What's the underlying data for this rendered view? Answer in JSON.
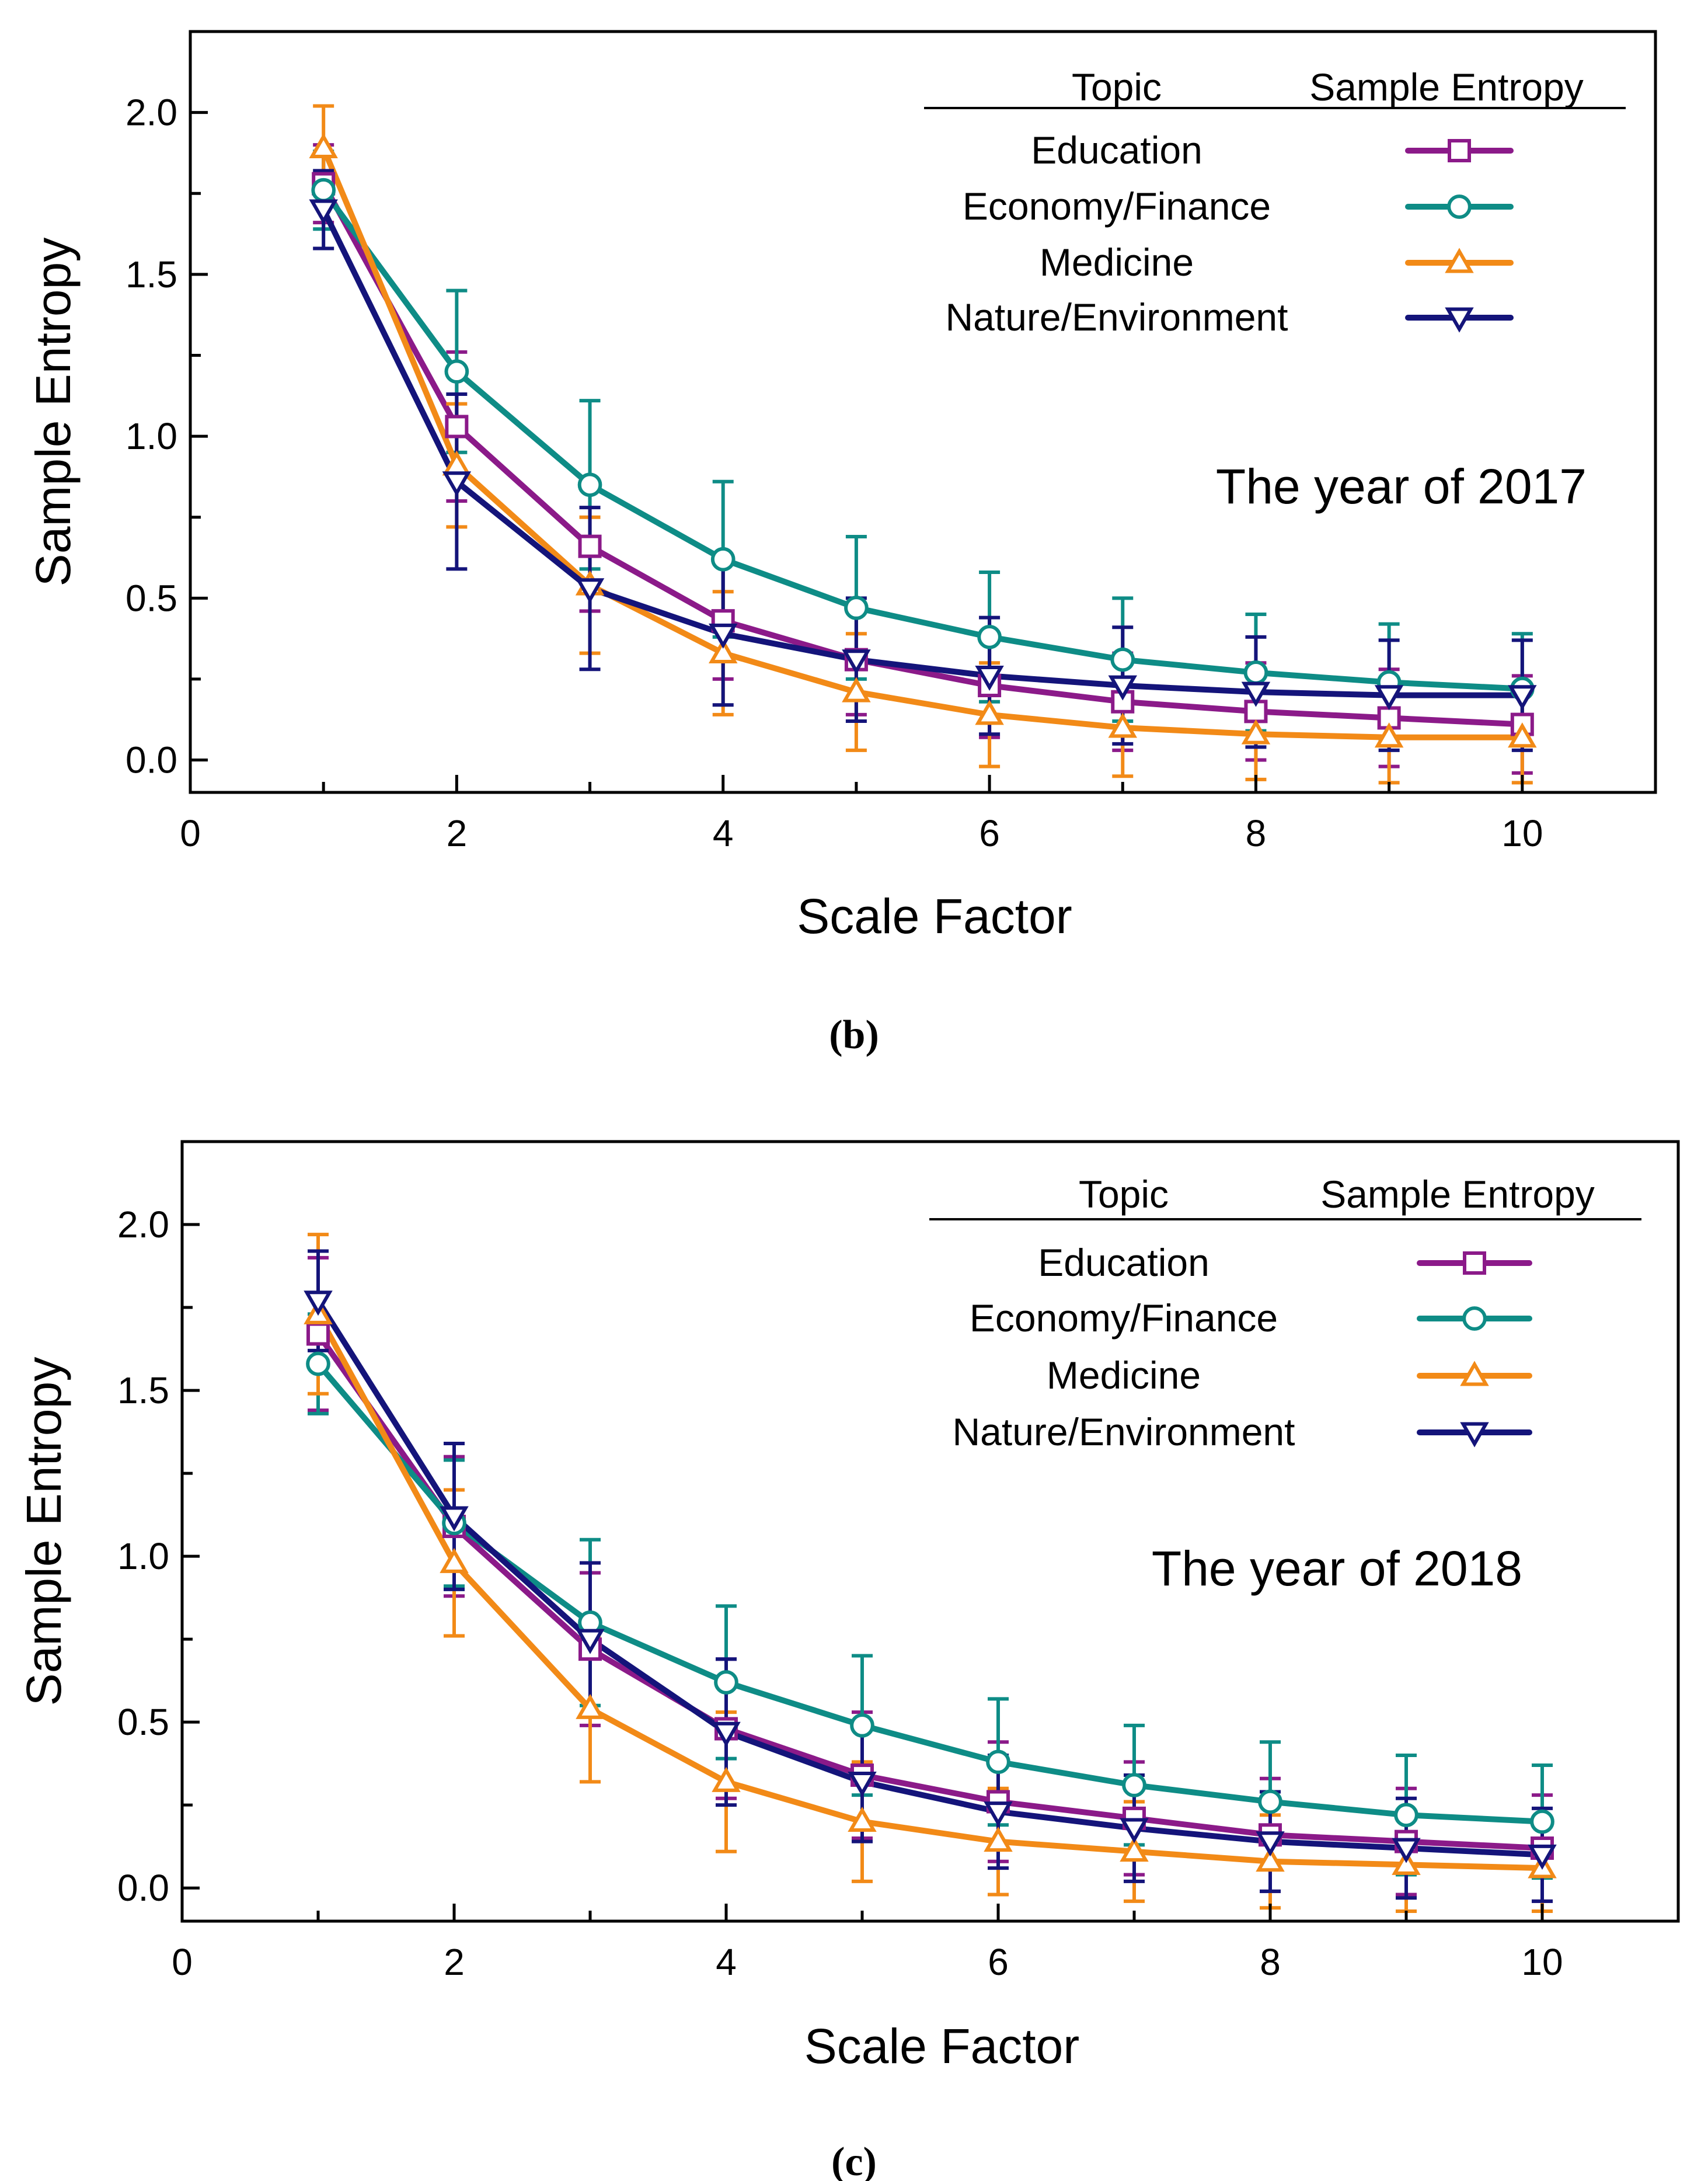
{
  "chart_data": [
    {
      "type": "line",
      "panel_label": "b",
      "caption": "(b)",
      "title": "",
      "annotation": "The year of 2017",
      "xlabel": "Scale Factor",
      "ylabel": "Sample Entropy",
      "xlim": [
        0,
        11
      ],
      "ylim": [
        -0.1,
        2.25
      ],
      "xticks": [
        "0",
        "2",
        "4",
        "6",
        "8",
        "10"
      ],
      "yticks": [
        "0.0",
        "0.5",
        "1.0",
        "1.5",
        "2.0"
      ],
      "grid": false,
      "legend": {
        "position": "top-right",
        "header_topic": "Topic",
        "header_symbol": "Sample Entropy"
      },
      "x": [
        1,
        2,
        3,
        4,
        5,
        6,
        7,
        8,
        9,
        10
      ],
      "series": [
        {
          "name": "Education",
          "color": "#8B1A89",
          "marker": "square",
          "values": [
            1.78,
            1.03,
            0.66,
            0.43,
            0.31,
            0.23,
            0.18,
            0.15,
            0.13,
            0.11
          ],
          "errors": [
            0.12,
            0.23,
            0.2,
            0.18,
            0.17,
            0.16,
            0.15,
            0.15,
            0.15,
            0.15
          ]
        },
        {
          "name": "Economy/Finance",
          "color": "#0E8C86",
          "marker": "circle",
          "values": [
            1.76,
            1.2,
            0.85,
            0.62,
            0.47,
            0.38,
            0.31,
            0.27,
            0.24,
            0.22
          ],
          "errors": [
            0.12,
            0.25,
            0.26,
            0.24,
            0.22,
            0.2,
            0.19,
            0.18,
            0.18,
            0.17
          ]
        },
        {
          "name": "Medicine",
          "color": "#F28A17",
          "marker": "triangle-up",
          "values": [
            1.89,
            0.91,
            0.54,
            0.33,
            0.21,
            0.14,
            0.1,
            0.08,
            0.07,
            0.07
          ],
          "errors": [
            0.13,
            0.19,
            0.21,
            0.19,
            0.18,
            0.16,
            0.15,
            0.14,
            0.14,
            0.14
          ]
        },
        {
          "name": "Nature/Environment",
          "color": "#14147A",
          "marker": "triangle-down",
          "values": [
            1.7,
            0.86,
            0.53,
            0.39,
            0.31,
            0.26,
            0.23,
            0.21,
            0.2,
            0.2
          ],
          "errors": [
            0.12,
            0.27,
            0.25,
            0.22,
            0.19,
            0.18,
            0.18,
            0.17,
            0.17,
            0.17
          ]
        }
      ]
    },
    {
      "type": "line",
      "panel_label": "c",
      "caption": "(c)",
      "title": "",
      "annotation": "The year of 2018",
      "xlabel": "Scale Factor",
      "ylabel": "Sample Entropy",
      "xlim": [
        0,
        11
      ],
      "ylim": [
        -0.1,
        2.25
      ],
      "xticks": [
        "0",
        "2",
        "4",
        "6",
        "8",
        "10"
      ],
      "yticks": [
        "0.0",
        "0.5",
        "1.0",
        "1.5",
        "2.0"
      ],
      "grid": false,
      "legend": {
        "position": "top-right",
        "header_topic": "Topic",
        "header_symbol": "Sample Entropy"
      },
      "x": [
        1,
        2,
        3,
        4,
        5,
        6,
        7,
        8,
        9,
        10
      ],
      "series": [
        {
          "name": "Education",
          "color": "#8B1A89",
          "marker": "square",
          "values": [
            1.67,
            1.09,
            0.72,
            0.48,
            0.34,
            0.26,
            0.21,
            0.16,
            0.14,
            0.12
          ],
          "errors": [
            0.23,
            0.21,
            0.23,
            0.21,
            0.19,
            0.18,
            0.17,
            0.17,
            0.16,
            0.16
          ]
        },
        {
          "name": "Economy/Finance",
          "color": "#0E8C86",
          "marker": "circle",
          "values": [
            1.58,
            1.1,
            0.8,
            0.62,
            0.49,
            0.38,
            0.31,
            0.26,
            0.22,
            0.2
          ],
          "errors": [
            0.15,
            0.19,
            0.25,
            0.23,
            0.21,
            0.19,
            0.18,
            0.18,
            0.18,
            0.17
          ]
        },
        {
          "name": "Medicine",
          "color": "#F28A17",
          "marker": "triangle-up",
          "values": [
            1.73,
            0.98,
            0.54,
            0.32,
            0.2,
            0.14,
            0.11,
            0.08,
            0.07,
            0.06
          ],
          "errors": [
            0.24,
            0.22,
            0.22,
            0.21,
            0.18,
            0.16,
            0.15,
            0.14,
            0.14,
            0.13
          ]
        },
        {
          "name": "Nature/Environment",
          "color": "#14147A",
          "marker": "triangle-down",
          "values": [
            1.77,
            1.12,
            0.75,
            0.47,
            0.32,
            0.23,
            0.18,
            0.14,
            0.12,
            0.1
          ],
          "errors": [
            0.15,
            0.22,
            0.23,
            0.22,
            0.18,
            0.17,
            0.16,
            0.15,
            0.15,
            0.14
          ]
        }
      ]
    }
  ]
}
